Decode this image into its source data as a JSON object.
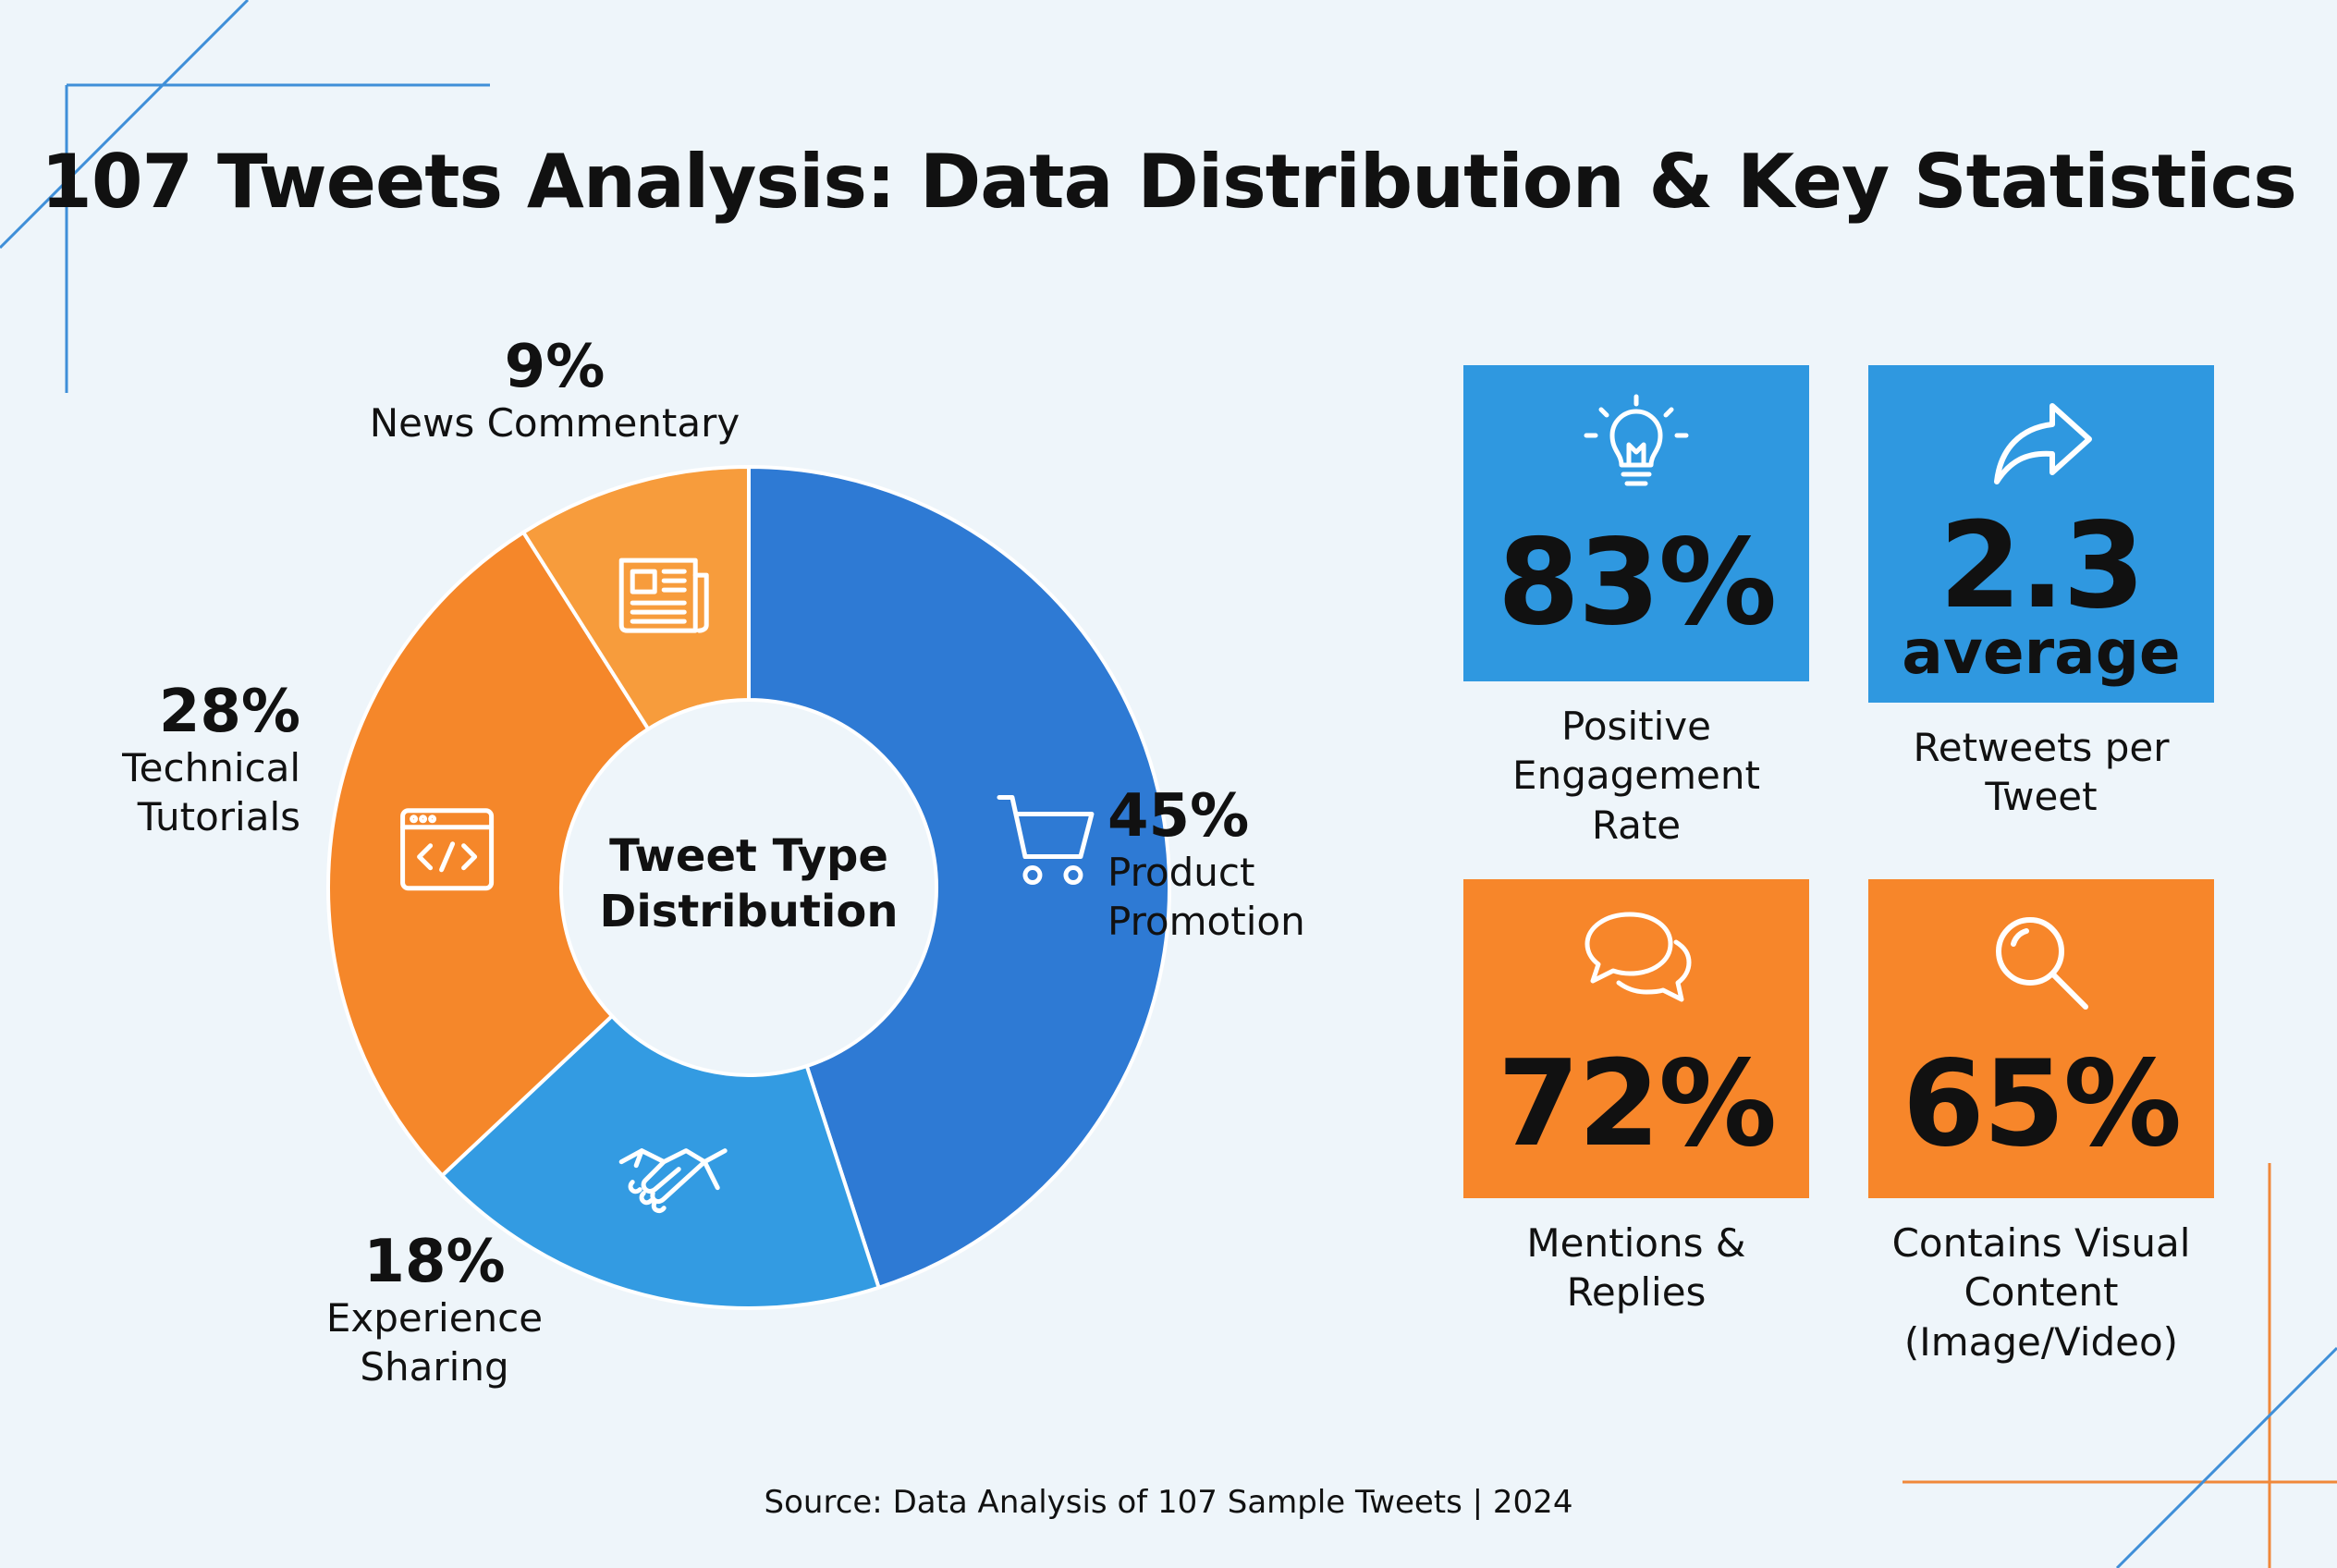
{
  "title": "107 Tweets Analysis: Data Distribution & Key Statistics",
  "colors": {
    "blue_dark": "#2e7ad4",
    "blue_light": "#339be2",
    "orange": "#f5872a",
    "orange_light": "#f79c3c",
    "card_blue": "#2f98e0",
    "card_orange": "#f7862a",
    "background": "#eef5fa"
  },
  "chart_data": {
    "type": "pie",
    "center_label": "Tweet Type Distribution",
    "center_label_lines": [
      "Tweet Type",
      "Distribution"
    ],
    "slices": [
      {
        "pct_label": "45%",
        "value": 45,
        "label_lines": [
          "Product",
          "Promotion"
        ],
        "icon": "shopping-cart-icon",
        "color": "#2e7ad4"
      },
      {
        "pct_label": "18%",
        "value": 18,
        "label_lines": [
          "Experience",
          "Sharing"
        ],
        "icon": "handshake-icon",
        "color": "#339be2"
      },
      {
        "pct_label": "28%",
        "value": 28,
        "label_lines": [
          "Technical",
          "Tutorials"
        ],
        "icon": "code-window-icon",
        "color": "#f5872a"
      },
      {
        "pct_label": "9%",
        "value": 9,
        "label_lines": [
          "News Commentary"
        ],
        "icon": "newspaper-icon",
        "color": "#f79c3c"
      }
    ]
  },
  "stats": [
    {
      "value": "83%",
      "sub": "",
      "label_lines": [
        "Positive",
        "Engagement",
        "Rate"
      ],
      "icon": "lightbulb-icon",
      "color": "#2f98e0"
    },
    {
      "value": "2.3",
      "sub": "average",
      "label_lines": [
        "Retweets per",
        "Tweet"
      ],
      "icon": "share-arrow-icon",
      "color": "#2f98e0"
    },
    {
      "value": "72%",
      "sub": "",
      "label_lines": [
        "Mentions &",
        "Replies"
      ],
      "icon": "chat-bubbles-icon",
      "color": "#f7862a"
    },
    {
      "value": "65%",
      "sub": "",
      "label_lines": [
        "Contains Visual",
        "Content",
        "(Image/Video)"
      ],
      "icon": "magnifier-icon",
      "color": "#f7862a"
    }
  ],
  "source": "Source: Data Analysis of 107 Sample Tweets | 2024"
}
